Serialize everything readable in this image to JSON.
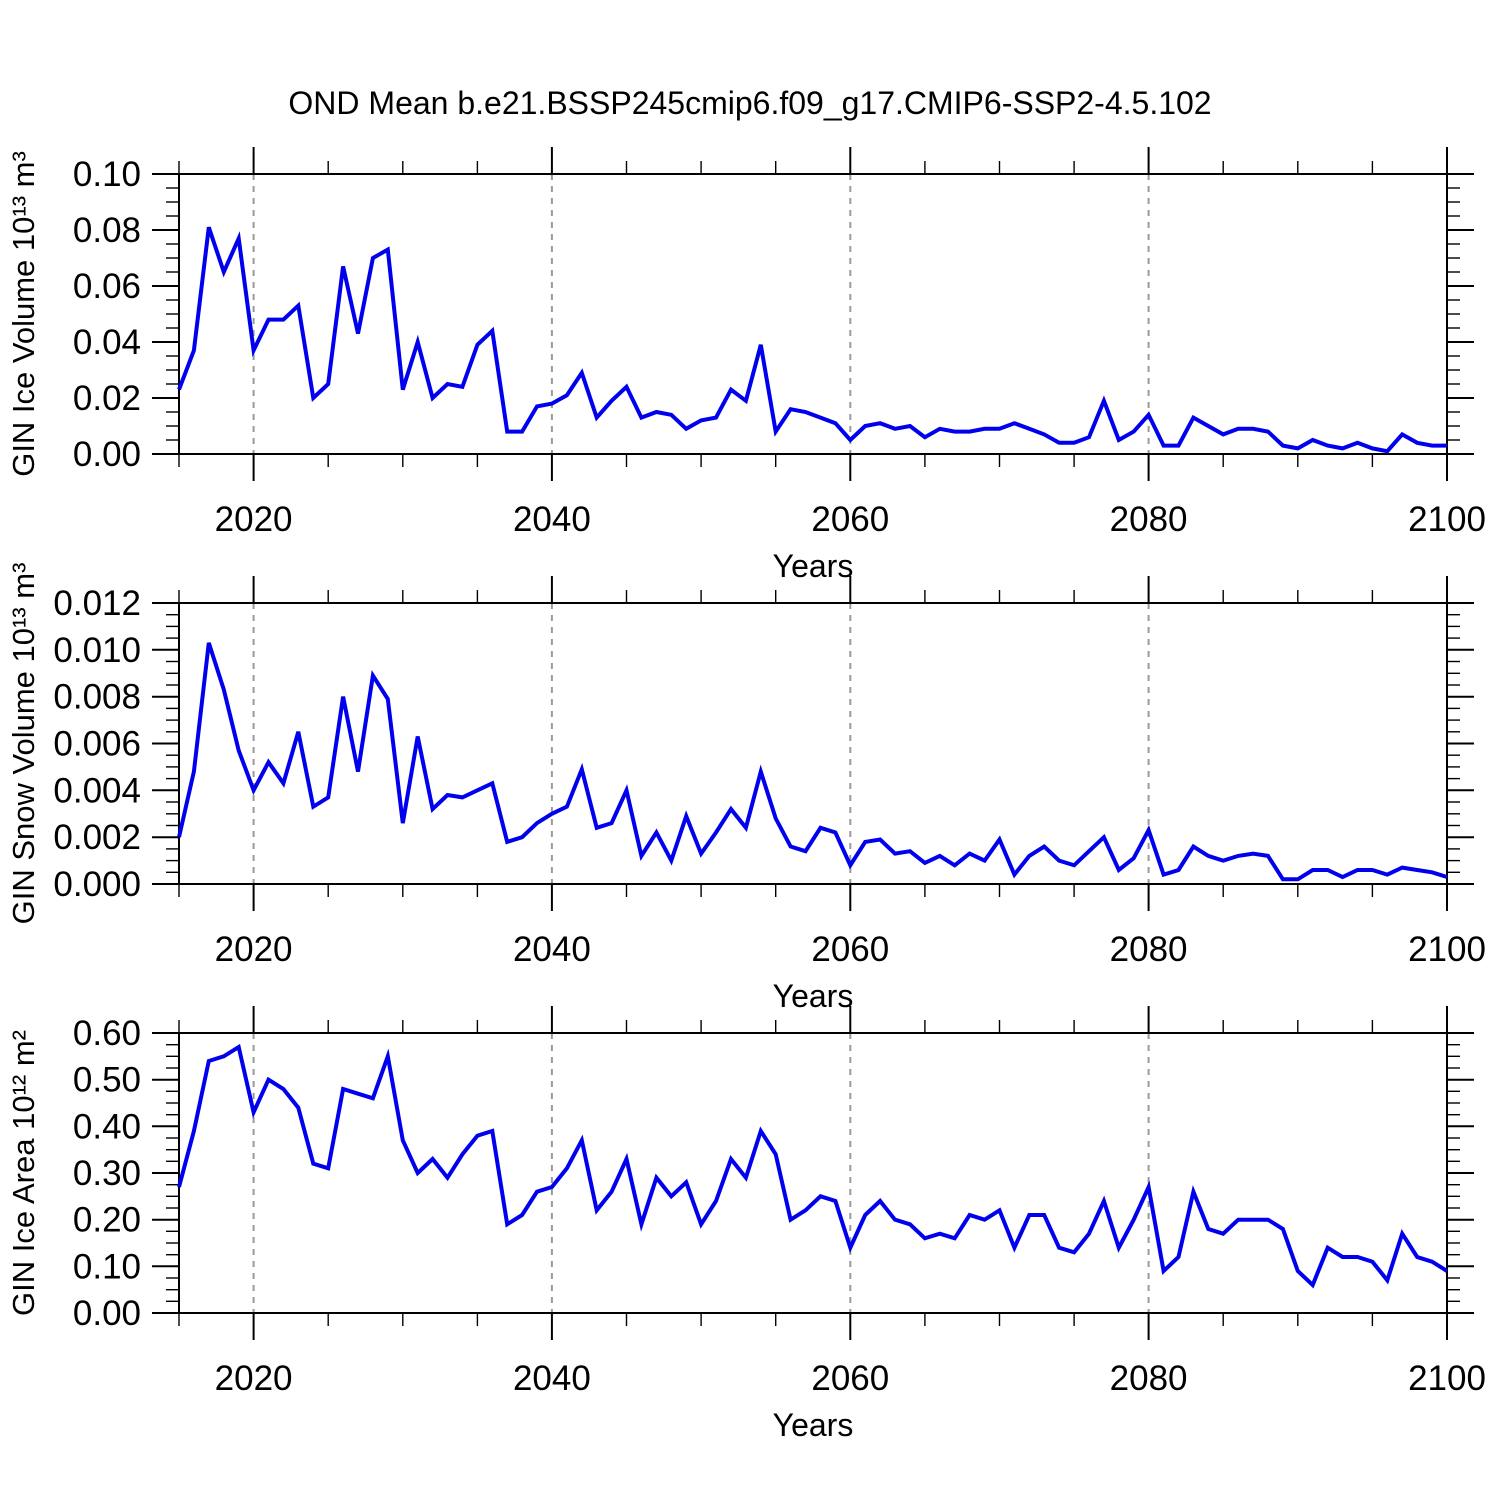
{
  "title": "OND Mean b.e21.BSSP245cmip6.f09_g17.CMIP6-SSP2-4.5.102",
  "colors": {
    "line": "#0000EE",
    "grid": "#9A9A9A",
    "axis": "#000000"
  },
  "chart_data": {
    "type": "line",
    "xlabel": "Years",
    "xlim": [
      2015,
      2100
    ],
    "xticks": {
      "values": [
        2020,
        2040,
        2060,
        2080,
        2100
      ],
      "labels": [
        "2020",
        "2040",
        "2060",
        "2080",
        "2100"
      ]
    },
    "x_minor_step": 5,
    "gridlines_x": [
      2020,
      2040,
      2060,
      2080
    ],
    "grid_style": "dashed",
    "legend": "none",
    "years": [
      2015,
      2016,
      2017,
      2018,
      2019,
      2020,
      2021,
      2022,
      2023,
      2024,
      2025,
      2026,
      2027,
      2028,
      2029,
      2030,
      2031,
      2032,
      2033,
      2034,
      2035,
      2036,
      2037,
      2038,
      2039,
      2040,
      2041,
      2042,
      2043,
      2044,
      2045,
      2046,
      2047,
      2048,
      2049,
      2050,
      2051,
      2052,
      2053,
      2054,
      2055,
      2056,
      2057,
      2058,
      2059,
      2060,
      2061,
      2062,
      2063,
      2064,
      2065,
      2066,
      2067,
      2068,
      2069,
      2070,
      2071,
      2072,
      2073,
      2074,
      2075,
      2076,
      2077,
      2078,
      2079,
      2080,
      2081,
      2082,
      2083,
      2084,
      2085,
      2086,
      2087,
      2088,
      2089,
      2090,
      2091,
      2092,
      2093,
      2094,
      2095,
      2096,
      2097,
      2098,
      2099,
      2100
    ],
    "panels": [
      {
        "name": "ice-volume",
        "ylabel": "GIN Ice Volume 10¹³ m³",
        "ylim": [
          0.0,
          0.1
        ],
        "yticks": {
          "values": [
            0.0,
            0.02,
            0.04,
            0.06,
            0.08,
            0.1
          ],
          "labels": [
            "0.00",
            "0.02",
            "0.04",
            "0.06",
            "0.08",
            "0.10"
          ]
        },
        "y_minor_step": 0.005,
        "values": [
          0.023,
          0.037,
          0.081,
          0.065,
          0.077,
          0.037,
          0.048,
          0.048,
          0.053,
          0.02,
          0.025,
          0.067,
          0.043,
          0.07,
          0.073,
          0.023,
          0.04,
          0.02,
          0.025,
          0.024,
          0.039,
          0.044,
          0.008,
          0.008,
          0.017,
          0.018,
          0.021,
          0.029,
          0.013,
          0.019,
          0.024,
          0.013,
          0.015,
          0.014,
          0.009,
          0.012,
          0.013,
          0.023,
          0.019,
          0.039,
          0.008,
          0.016,
          0.015,
          0.013,
          0.011,
          0.005,
          0.01,
          0.011,
          0.009,
          0.01,
          0.006,
          0.009,
          0.008,
          0.008,
          0.009,
          0.009,
          0.011,
          0.009,
          0.007,
          0.004,
          0.004,
          0.006,
          0.019,
          0.005,
          0.008,
          0.014,
          0.003,
          0.003,
          0.013,
          0.01,
          0.007,
          0.009,
          0.009,
          0.008,
          0.003,
          0.002,
          0.005,
          0.003,
          0.002,
          0.004,
          0.002,
          0.001,
          0.007,
          0.004,
          0.003,
          0.003
        ]
      },
      {
        "name": "snow-volume",
        "ylabel": "GIN Snow Volume 10¹³ m³",
        "ylim": [
          0.0,
          0.012
        ],
        "yticks": {
          "values": [
            0.0,
            0.002,
            0.004,
            0.006,
            0.008,
            0.01,
            0.012
          ],
          "labels": [
            "0.000",
            "0.002",
            "0.004",
            "0.006",
            "0.008",
            "0.010",
            "0.012"
          ]
        },
        "y_minor_step": 0.0005,
        "values": [
          0.002,
          0.0048,
          0.0103,
          0.0083,
          0.0057,
          0.004,
          0.0052,
          0.0043,
          0.0065,
          0.0033,
          0.0037,
          0.008,
          0.0048,
          0.0089,
          0.0079,
          0.0026,
          0.0063,
          0.0032,
          0.0038,
          0.0037,
          0.004,
          0.0043,
          0.0018,
          0.002,
          0.0026,
          0.003,
          0.0033,
          0.0049,
          0.0024,
          0.0026,
          0.004,
          0.0012,
          0.0022,
          0.001,
          0.0029,
          0.0013,
          0.0022,
          0.0032,
          0.0024,
          0.0048,
          0.0028,
          0.0016,
          0.0014,
          0.0024,
          0.0022,
          0.0008,
          0.0018,
          0.0019,
          0.0013,
          0.0014,
          0.0009,
          0.0012,
          0.0008,
          0.0013,
          0.001,
          0.0019,
          0.0004,
          0.0012,
          0.0016,
          0.001,
          0.0008,
          0.0014,
          0.002,
          0.0006,
          0.0011,
          0.0023,
          0.0004,
          0.0006,
          0.0016,
          0.0012,
          0.001,
          0.0012,
          0.0013,
          0.0012,
          0.0002,
          0.0002,
          0.0006,
          0.0006,
          0.0003,
          0.0006,
          0.0006,
          0.0004,
          0.0007,
          0.0006,
          0.0005,
          0.0003
        ]
      },
      {
        "name": "ice-area",
        "ylabel": "GIN Ice Area 10¹² m²",
        "ylim": [
          0.0,
          0.6
        ],
        "yticks": {
          "values": [
            0.0,
            0.1,
            0.2,
            0.3,
            0.4,
            0.5,
            0.6
          ],
          "labels": [
            "0.00",
            "0.10",
            "0.20",
            "0.30",
            "0.40",
            "0.50",
            "0.60"
          ]
        },
        "y_minor_step": 0.025,
        "values": [
          0.27,
          0.39,
          0.54,
          0.55,
          0.57,
          0.43,
          0.5,
          0.48,
          0.44,
          0.32,
          0.31,
          0.48,
          0.47,
          0.46,
          0.55,
          0.37,
          0.3,
          0.33,
          0.29,
          0.34,
          0.38,
          0.39,
          0.19,
          0.21,
          0.26,
          0.27,
          0.31,
          0.37,
          0.22,
          0.26,
          0.33,
          0.19,
          0.29,
          0.25,
          0.28,
          0.19,
          0.24,
          0.33,
          0.29,
          0.39,
          0.34,
          0.2,
          0.22,
          0.25,
          0.24,
          0.14,
          0.21,
          0.24,
          0.2,
          0.19,
          0.16,
          0.17,
          0.16,
          0.21,
          0.2,
          0.22,
          0.14,
          0.21,
          0.21,
          0.14,
          0.13,
          0.17,
          0.24,
          0.14,
          0.2,
          0.27,
          0.09,
          0.12,
          0.26,
          0.18,
          0.17,
          0.2,
          0.2,
          0.2,
          0.18,
          0.09,
          0.06,
          0.14,
          0.12,
          0.12,
          0.11,
          0.07,
          0.17,
          0.12,
          0.11,
          0.09
        ]
      }
    ]
  }
}
